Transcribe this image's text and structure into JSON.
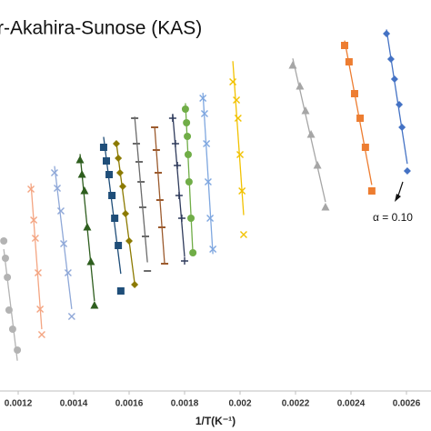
{
  "chart_data": {
    "type": "scatter",
    "title": "r-Akahira-Sunose (KAS)",
    "xlabel": "1/T(K⁻¹)",
    "annotation": "α = 0.10",
    "xlim": [
      0.0011344,
      0.0026885
    ],
    "xticks": [
      0.0012,
      0.0014,
      0.0016,
      0.0018,
      0.002,
      0.0022,
      0.0024,
      0.0026
    ],
    "ylim": [
      0,
      430
    ],
    "series": [
      {
        "color": "#b3b3b3",
        "marker": "circle",
        "x": [
          0.001197,
          0.00118,
          0.001167,
          0.001161,
          0.001154,
          0.001148
        ],
        "values": [
          45,
          68,
          89,
          125,
          146,
          165
        ]
      },
      {
        "color": "#f4a582",
        "marker": "x",
        "x": [
          0.001285,
          0.001279,
          0.001272,
          0.001262,
          0.001256,
          0.001246
        ],
        "values": [
          62,
          90,
          130,
          168,
          188,
          222
        ]
      },
      {
        "color": "#8fa8d8",
        "marker": "x",
        "x": [
          0.001393,
          0.00138,
          0.001364,
          0.001354,
          0.001341,
          0.001331
        ],
        "values": [
          82,
          130,
          162,
          198,
          223,
          240
        ]
      },
      {
        "color": "#2e5e1e",
        "marker": "triangle",
        "x": [
          0.001475,
          0.001462,
          0.001449,
          0.001439,
          0.00143,
          0.001423
        ],
        "values": [
          94,
          142,
          180,
          220,
          238,
          254
        ]
      },
      {
        "color": "#1f4e79",
        "marker": "square",
        "x": [
          0.00157,
          0.001561,
          0.001548,
          0.001538,
          0.001528,
          0.001518,
          0.001508
        ],
        "values": [
          110,
          160,
          190,
          215,
          238,
          253,
          268
        ]
      },
      {
        "color": "#8c7a00",
        "marker": "diamond",
        "x": [
          0.00162,
          0.0016,
          0.001587,
          0.001577,
          0.001567,
          0.001561,
          0.001554
        ],
        "values": [
          117,
          165,
          195,
          225,
          240,
          256,
          272
        ]
      },
      {
        "color": "#6b6b6b",
        "marker": "dash",
        "x": [
          0.001666,
          0.001659,
          0.001649,
          0.001643,
          0.001636,
          0.001626,
          0.00162
        ],
        "values": [
          132,
          170,
          202,
          230,
          252,
          272,
          300
        ]
      },
      {
        "color": "#9c5b2e",
        "marker": "dash",
        "x": [
          0.001728,
          0.001718,
          0.001711,
          0.001705,
          0.001698,
          0.001692
        ],
        "values": [
          140,
          180,
          210,
          240,
          265,
          290
        ]
      },
      {
        "color": "#2f3b5c",
        "marker": "plus",
        "x": [
          0.0018,
          0.00179,
          0.00178,
          0.001774,
          0.001767,
          0.001757
        ],
        "values": [
          143,
          190,
          215,
          248,
          272,
          300
        ]
      },
      {
        "color": "#70ad47",
        "marker": "circle",
        "x": [
          0.00183,
          0.001823,
          0.001816,
          0.001813,
          0.00181,
          0.001807,
          0.001803
        ],
        "values": [
          152,
          190,
          230,
          260,
          280,
          295,
          310
        ]
      },
      {
        "color": "#7fa7e0",
        "marker": "x",
        "x": [
          0.001902,
          0.001892,
          0.001885,
          0.001879,
          0.001872,
          0.001866
        ],
        "values": [
          156,
          190,
          230,
          272,
          305,
          322
        ]
      },
      {
        "color": "#f2c200",
        "marker": "x",
        "x": [
          0.002013,
          0.002007,
          0.002,
          0.001993,
          0.001987,
          0.001974
        ],
        "values": [
          172,
          220,
          260,
          300,
          320,
          340
        ]
      },
      {
        "color": "#a6a6a6",
        "marker": "triangle",
        "x": [
          0.002308,
          0.002279,
          0.002256,
          0.002236,
          0.002216,
          0.00219
        ],
        "values": [
          202,
          248,
          282,
          308,
          335,
          358
        ]
      },
      {
        "color": "#ed7d31",
        "marker": "square",
        "x": [
          0.002475,
          0.002452,
          0.002433,
          0.002413,
          0.002393,
          0.002377
        ],
        "values": [
          220,
          268,
          300,
          327,
          362,
          380
        ]
      },
      {
        "color": "#4472c4",
        "marker": "diamond",
        "x": [
          0.002603,
          0.002584,
          0.002574,
          0.002557,
          0.002544,
          0.002528
        ],
        "values": [
          242,
          290,
          315,
          343,
          365,
          393
        ]
      }
    ]
  }
}
